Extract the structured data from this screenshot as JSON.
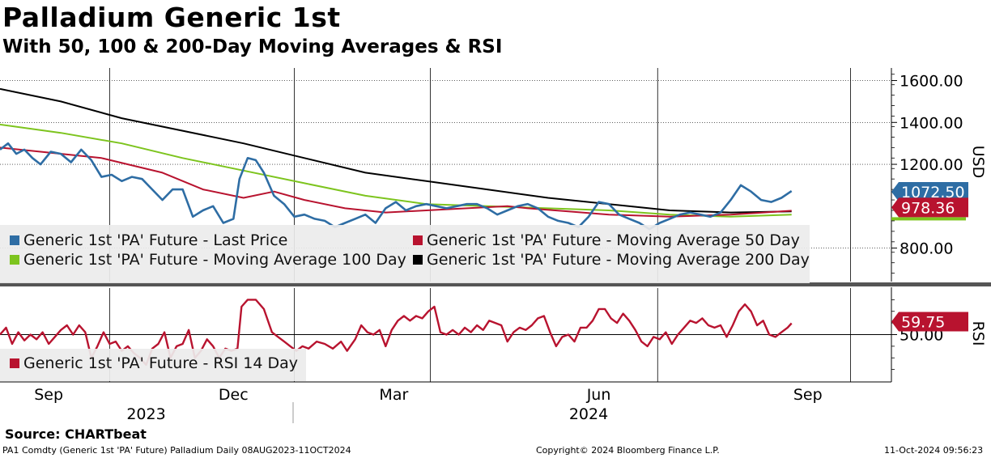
{
  "title": "Palladium Generic 1st",
  "subtitle": "With 50, 100 & 200-Day Moving Averages & RSI",
  "source": "Source:  CHARTbeat",
  "footer": {
    "left": "PA1 Comdty (Generic 1st 'PA' Future) Palladium  Daily 08AUG2023-11OCT2024",
    "center": "Copyright© 2024 Bloomberg Finance L.P.",
    "right": "11-Oct-2024 09:56:23"
  },
  "colors": {
    "price": "#2e6da4",
    "ma50": "#b8132f",
    "ma100": "#7dc41e",
    "ma200": "#000000",
    "rsi": "#b8132f"
  },
  "chart_data": [
    {
      "type": "line",
      "title": "Generic 1st 'PA' Future price with moving averages",
      "ylabel": "USD",
      "ylim": [
        640,
        1660
      ],
      "yticks": [
        "1600.00",
        "1400.00",
        "1200.00",
        "800.00"
      ],
      "ytick_values": [
        1600,
        1400,
        1200,
        800
      ],
      "xlim": [
        "2023-08-08",
        "2024-10-11"
      ],
      "x_month_labels": [
        "Sep",
        "Dec",
        "Mar",
        "Jun",
        "Sep"
      ],
      "x_year_labels": [
        "2023",
        "2024"
      ],
      "legend": [
        "Generic 1st 'PA' Future - Last Price",
        "Generic 1st 'PA' Future - Moving Average 50 Day",
        "Generic 1st 'PA' Future - Moving Average 100 Day",
        "Generic 1st 'PA' Future - Moving Average 200 Day"
      ],
      "last_value_tags": [
        "1072.50",
        "978.36"
      ],
      "series": [
        {
          "name": "Last Price",
          "key": "price",
          "values": [
            [
              0,
              1270
            ],
            [
              4,
              1300
            ],
            [
              8,
              1250
            ],
            [
              12,
              1270
            ],
            [
              16,
              1230
            ],
            [
              20,
              1200
            ],
            [
              25,
              1260
            ],
            [
              30,
              1250
            ],
            [
              35,
              1210
            ],
            [
              40,
              1270
            ],
            [
              45,
              1220
            ],
            [
              50,
              1140
            ],
            [
              55,
              1150
            ],
            [
              60,
              1120
            ],
            [
              65,
              1140
            ],
            [
              70,
              1130
            ],
            [
              75,
              1080
            ],
            [
              80,
              1030
            ],
            [
              85,
              1080
            ],
            [
              90,
              1080
            ],
            [
              95,
              950
            ],
            [
              100,
              980
            ],
            [
              105,
              1000
            ],
            [
              110,
              920
            ],
            [
              115,
              940
            ],
            [
              118,
              1130
            ],
            [
              122,
              1230
            ],
            [
              126,
              1220
            ],
            [
              130,
              1160
            ],
            [
              135,
              1050
            ],
            [
              140,
              1010
            ],
            [
              145,
              950
            ],
            [
              150,
              960
            ],
            [
              155,
              940
            ],
            [
              160,
              930
            ],
            [
              165,
              900
            ],
            [
              170,
              920
            ],
            [
              175,
              940
            ],
            [
              180,
              960
            ],
            [
              185,
              920
            ],
            [
              190,
              990
            ],
            [
              195,
              1020
            ],
            [
              200,
              980
            ],
            [
              205,
              1000
            ],
            [
              210,
              1010
            ],
            [
              215,
              1000
            ],
            [
              220,
              990
            ],
            [
              225,
              1000
            ],
            [
              230,
              1010
            ],
            [
              235,
              1010
            ],
            [
              240,
              990
            ],
            [
              245,
              960
            ],
            [
              250,
              980
            ],
            [
              255,
              1000
            ],
            [
              260,
              1010
            ],
            [
              265,
              990
            ],
            [
              270,
              950
            ],
            [
              275,
              930
            ],
            [
              280,
              920
            ],
            [
              285,
              900
            ],
            [
              290,
              950
            ],
            [
              295,
              1020
            ],
            [
              300,
              1010
            ],
            [
              305,
              960
            ],
            [
              310,
              940
            ],
            [
              315,
              920
            ],
            [
              320,
              890
            ],
            [
              325,
              920
            ],
            [
              330,
              940
            ],
            [
              335,
              960
            ],
            [
              340,
              970
            ],
            [
              345,
              960
            ],
            [
              350,
              950
            ],
            [
              355,
              970
            ],
            [
              360,
              1030
            ],
            [
              365,
              1100
            ],
            [
              370,
              1070
            ],
            [
              375,
              1030
            ],
            [
              380,
              1020
            ],
            [
              385,
              1040
            ],
            [
              390,
              1072.5
            ]
          ]
        },
        {
          "name": "Moving Average 50 Day",
          "key": "ma50",
          "values": [
            [
              0,
              1280
            ],
            [
              20,
              1260
            ],
            [
              50,
              1230
            ],
            [
              80,
              1160
            ],
            [
              100,
              1080
            ],
            [
              120,
              1040
            ],
            [
              135,
              1070
            ],
            [
              150,
              1030
            ],
            [
              170,
              990
            ],
            [
              190,
              970
            ],
            [
              210,
              980
            ],
            [
              230,
              990
            ],
            [
              250,
              1000
            ],
            [
              260,
              990
            ],
            [
              280,
              975
            ],
            [
              300,
              960
            ],
            [
              330,
              950
            ],
            [
              360,
              960
            ],
            [
              390,
              978.36
            ]
          ]
        },
        {
          "name": "Moving Average 100 Day",
          "key": "ma100",
          "values": [
            [
              0,
              1390
            ],
            [
              30,
              1350
            ],
            [
              60,
              1300
            ],
            [
              90,
              1230
            ],
            [
              120,
              1170
            ],
            [
              150,
              1110
            ],
            [
              180,
              1050
            ],
            [
              210,
              1010
            ],
            [
              240,
              1000
            ],
            [
              270,
              990
            ],
            [
              300,
              980
            ],
            [
              330,
              960
            ],
            [
              360,
              950
            ],
            [
              390,
              960
            ]
          ]
        },
        {
          "name": "Moving Average 200 Day",
          "key": "ma200",
          "values": [
            [
              0,
              1560
            ],
            [
              30,
              1500
            ],
            [
              60,
              1420
            ],
            [
              90,
              1360
            ],
            [
              120,
              1300
            ],
            [
              150,
              1230
            ],
            [
              180,
              1160
            ],
            [
              210,
              1120
            ],
            [
              240,
              1080
            ],
            [
              270,
              1040
            ],
            [
              300,
              1010
            ],
            [
              330,
              980
            ],
            [
              360,
              970
            ],
            [
              390,
              975
            ]
          ]
        }
      ]
    },
    {
      "type": "line",
      "title": "RSI",
      "ylabel": "RSI",
      "ylim": [
        10,
        90
      ],
      "yticks": [
        "50.00"
      ],
      "ytick_values": [
        50
      ],
      "legend": [
        "Generic 1st 'PA' Future - RSI 14 Day"
      ],
      "last_value_tags": [
        "59.75"
      ],
      "series": [
        {
          "name": "RSI 14 Day",
          "key": "rsi",
          "values": [
            [
              0,
              50
            ],
            [
              3,
              56
            ],
            [
              6,
              42
            ],
            [
              9,
              52
            ],
            [
              12,
              45
            ],
            [
              15,
              50
            ],
            [
              18,
              46
            ],
            [
              21,
              52
            ],
            [
              24,
              42
            ],
            [
              27,
              48
            ],
            [
              30,
              54
            ],
            [
              33,
              58
            ],
            [
              36,
              50
            ],
            [
              39,
              58
            ],
            [
              42,
              52
            ],
            [
              45,
              30
            ],
            [
              48,
              40
            ],
            [
              51,
              52
            ],
            [
              54,
              42
            ],
            [
              57,
              44
            ],
            [
              60,
              36
            ],
            [
              63,
              40
            ],
            [
              66,
              34
            ],
            [
              69,
              30
            ],
            [
              72,
              24
            ],
            [
              75,
              38
            ],
            [
              78,
              42
            ],
            [
              81,
              52
            ],
            [
              84,
              30
            ],
            [
              87,
              40
            ],
            [
              90,
              42
            ],
            [
              93,
              54
            ],
            [
              96,
              30
            ],
            [
              99,
              36
            ],
            [
              102,
              46
            ],
            [
              105,
              40
            ],
            [
              108,
              30
            ],
            [
              111,
              38
            ],
            [
              114,
              36
            ],
            [
              117,
              38
            ],
            [
              119,
              74
            ],
            [
              122,
              80
            ],
            [
              126,
              80
            ],
            [
              130,
              72
            ],
            [
              134,
              52
            ],
            [
              137,
              48
            ],
            [
              140,
              44
            ],
            [
              143,
              40
            ],
            [
              146,
              36
            ],
            [
              149,
              40
            ],
            [
              152,
              38
            ],
            [
              156,
              44
            ],
            [
              160,
              42
            ],
            [
              164,
              38
            ],
            [
              168,
              44
            ],
            [
              171,
              36
            ],
            [
              175,
              46
            ],
            [
              178,
              58
            ],
            [
              181,
              52
            ],
            [
              184,
              50
            ],
            [
              187,
              54
            ],
            [
              190,
              40
            ],
            [
              193,
              54
            ],
            [
              196,
              62
            ],
            [
              199,
              66
            ],
            [
              202,
              62
            ],
            [
              205,
              66
            ],
            [
              208,
              64
            ],
            [
              211,
              70
            ],
            [
              214,
              74
            ],
            [
              217,
              52
            ],
            [
              220,
              50
            ],
            [
              223,
              54
            ],
            [
              226,
              50
            ],
            [
              229,
              56
            ],
            [
              232,
              52
            ],
            [
              235,
              58
            ],
            [
              238,
              54
            ],
            [
              241,
              62
            ],
            [
              244,
              60
            ],
            [
              247,
              58
            ],
            [
              250,
              44
            ],
            [
              253,
              52
            ],
            [
              256,
              56
            ],
            [
              259,
              54
            ],
            [
              262,
              58
            ],
            [
              265,
              64
            ],
            [
              268,
              66
            ],
            [
              271,
              52
            ],
            [
              274,
              40
            ],
            [
              277,
              48
            ],
            [
              280,
              50
            ],
            [
              283,
              44
            ],
            [
              286,
              56
            ],
            [
              289,
              56
            ],
            [
              292,
              62
            ],
            [
              295,
              72
            ],
            [
              298,
              72
            ],
            [
              301,
              64
            ],
            [
              304,
              60
            ],
            [
              307,
              68
            ],
            [
              310,
              62
            ],
            [
              313,
              54
            ],
            [
              316,
              44
            ],
            [
              319,
              40
            ],
            [
              322,
              48
            ],
            [
              325,
              46
            ],
            [
              328,
              52
            ],
            [
              331,
              42
            ],
            [
              334,
              50
            ],
            [
              337,
              56
            ],
            [
              340,
              62
            ],
            [
              343,
              60
            ],
            [
              346,
              64
            ],
            [
              349,
              58
            ],
            [
              352,
              56
            ],
            [
              355,
              58
            ],
            [
              358,
              48
            ],
            [
              361,
              58
            ],
            [
              364,
              70
            ],
            [
              367,
              76
            ],
            [
              370,
              70
            ],
            [
              373,
              58
            ],
            [
              376,
              62
            ],
            [
              379,
              50
            ],
            [
              382,
              48
            ],
            [
              385,
              52
            ],
            [
              388,
              56
            ],
            [
              390,
              59.75
            ]
          ]
        }
      ]
    }
  ]
}
